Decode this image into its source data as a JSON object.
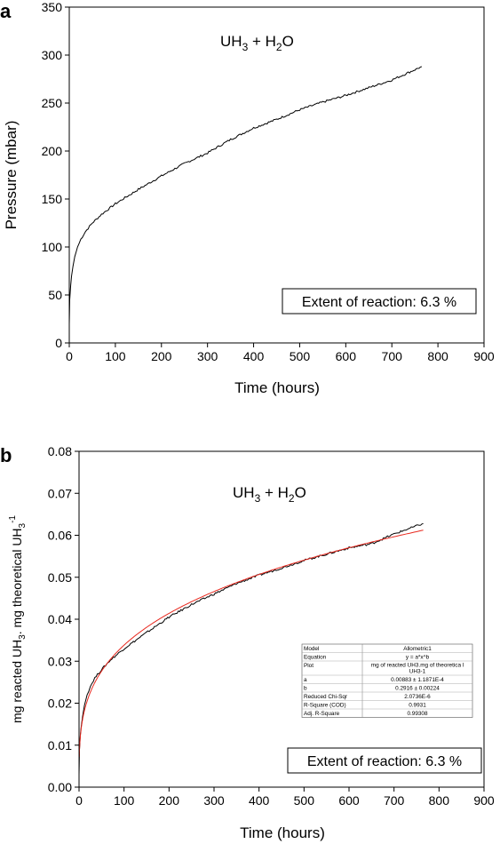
{
  "chart_data": [
    {
      "type": "line",
      "panel": "a",
      "annotation": "UH3 + H2O",
      "formula_label": {
        "main": "UH",
        "sub1": "3",
        "mid": " + H",
        "sub2": "2",
        "end": "O"
      },
      "box_label": "Extent of reaction: 6.3 %",
      "xlabel": "Time (hours)",
      "ylabel": "Pressure (mbar)",
      "xlim": [
        0,
        900
      ],
      "ylim": [
        0,
        350
      ],
      "xticks": [
        "0",
        "100",
        "200",
        "300",
        "400",
        "500",
        "600",
        "700",
        "800",
        "900"
      ],
      "yticks": [
        "0",
        "50",
        "100",
        "150",
        "200",
        "250",
        "300",
        "350"
      ],
      "series": [
        {
          "color": "#000000",
          "x": [
            0,
            1,
            3,
            5,
            8,
            12,
            18,
            25,
            35,
            50,
            70,
            100,
            150,
            200,
            250,
            300,
            350,
            400,
            450,
            500,
            550,
            600,
            650,
            700,
            765
          ],
          "y": [
            20,
            45,
            60,
            70,
            80,
            90,
            100,
            108,
            116,
            125,
            134,
            145,
            160,
            174,
            187,
            198,
            212,
            224,
            233,
            243,
            251,
            258,
            266,
            274,
            288
          ]
        }
      ]
    },
    {
      "type": "line",
      "panel": "b",
      "annotation": "UH3 + H2O",
      "formula_label": {
        "main": "UH",
        "sub1": "3",
        "mid": " + H",
        "sub2": "2",
        "end": "O"
      },
      "box_label": "Extent of reaction: 6.3 %",
      "xlabel": "Time (hours)",
      "ylabel_parts": {
        "a": "mg reacted UH",
        "a_sub": "3",
        "b": ". mg theoretical UH",
        "b_sub": "3",
        "b_sup": "-1"
      },
      "xlim": [
        0,
        900
      ],
      "ylim": [
        0,
        0.08
      ],
      "xticks": [
        "0",
        "100",
        "200",
        "300",
        "400",
        "500",
        "600",
        "700",
        "800",
        "900"
      ],
      "yticks": [
        "0.00",
        "0.01",
        "0.02",
        "0.03",
        "0.04",
        "0.05",
        "0.06",
        "0.07",
        "0.08"
      ],
      "series": [
        {
          "color": "#000000",
          "x": [
            0,
            1,
            3,
            5,
            8,
            12,
            18,
            25,
            35,
            50,
            70,
            100,
            150,
            200,
            250,
            300,
            350,
            400,
            450,
            500,
            550,
            600,
            650,
            700,
            765
          ],
          "y": [
            0.003,
            0.009,
            0.0125,
            0.0145,
            0.017,
            0.0195,
            0.022,
            0.024,
            0.026,
            0.028,
            0.0303,
            0.033,
            0.0368,
            0.0405,
            0.0435,
            0.046,
            0.0485,
            0.0505,
            0.0522,
            0.054,
            0.0555,
            0.057,
            0.058,
            0.0603,
            0.0628
          ]
        },
        {
          "color": "#e8281e",
          "fit": {
            "a": 0.00883,
            "b": 0.2916
          },
          "x_range": [
            0.5,
            765
          ]
        }
      ],
      "fit_table": {
        "rows": [
          [
            "Model",
            "Allometric1"
          ],
          [
            "Equation",
            "y = a*x^b"
          ],
          [
            "Plot",
            "mg of reacted UH3.mg of theoretica l UH3-1"
          ],
          [
            "a",
            "0.00883 ± 1.1871E-4"
          ],
          [
            "b",
            "0.2916 ± 0.00224"
          ],
          [
            "Reduced Chi-Sqr",
            "2.0736E-6"
          ],
          [
            "R-Square (COD)",
            "0.9931"
          ],
          [
            "Adj. R-Square",
            "0.99308"
          ]
        ]
      }
    }
  ]
}
